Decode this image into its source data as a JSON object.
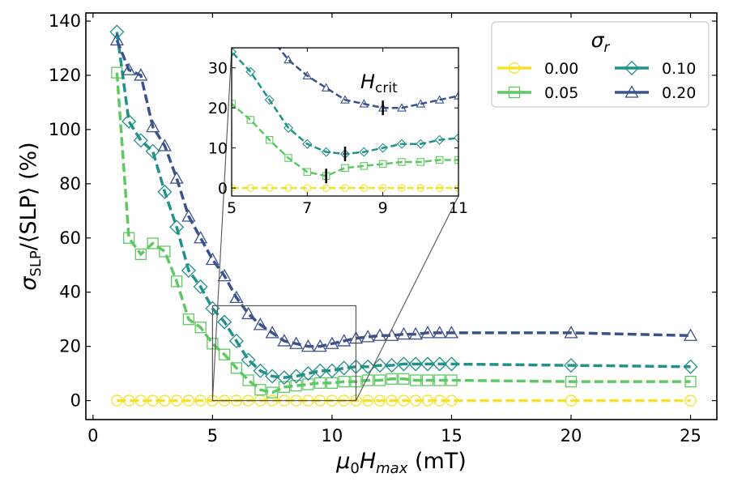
{
  "chart_data": {
    "type": "line",
    "xlabel": "μ₀H_max (mT)",
    "ylabel": "σ_SLP/⟨SLP⟩ (%)",
    "xlim": [
      -0.3,
      26.1
    ],
    "ylim": [
      -7,
      143
    ],
    "xticks": [
      0,
      5,
      10,
      15,
      20,
      25
    ],
    "yticks": [
      0,
      20,
      40,
      60,
      80,
      100,
      120,
      140
    ],
    "legend": {
      "title": "σ_r",
      "placement": "top-right"
    },
    "series": [
      {
        "name": "0.00",
        "color": "#f2e22b",
        "marker": "circle",
        "points": [
          [
            1,
            0
          ],
          [
            1.5,
            0
          ],
          [
            2,
            0
          ],
          [
            2.5,
            0
          ],
          [
            3,
            0
          ],
          [
            3.5,
            0
          ],
          [
            4,
            0
          ],
          [
            4.5,
            0
          ],
          [
            5,
            0
          ],
          [
            5.5,
            0
          ],
          [
            6,
            0
          ],
          [
            6.5,
            0
          ],
          [
            7,
            0
          ],
          [
            7.5,
            0
          ],
          [
            8,
            0
          ],
          [
            8.5,
            0
          ],
          [
            9,
            0
          ],
          [
            9.5,
            0
          ],
          [
            10,
            0
          ],
          [
            10.5,
            0
          ],
          [
            11,
            0
          ],
          [
            11.5,
            0
          ],
          [
            12,
            0
          ],
          [
            12.5,
            0
          ],
          [
            13,
            0
          ],
          [
            13.5,
            0
          ],
          [
            14,
            0
          ],
          [
            14.5,
            0
          ],
          [
            15,
            0
          ],
          [
            20,
            0
          ],
          [
            25,
            0
          ]
        ]
      },
      {
        "name": "0.05",
        "color": "#5ec962",
        "marker": "square",
        "points": [
          [
            1,
            121
          ],
          [
            1.5,
            60
          ],
          [
            2,
            54
          ],
          [
            2.5,
            58
          ],
          [
            3,
            55
          ],
          [
            3.5,
            44
          ],
          [
            4,
            30
          ],
          [
            4.5,
            27
          ],
          [
            5,
            21
          ],
          [
            5.5,
            17
          ],
          [
            6,
            12
          ],
          [
            6.5,
            7.5
          ],
          [
            7,
            4
          ],
          [
            7.5,
            3
          ],
          [
            8,
            5
          ],
          [
            8.5,
            5.5
          ],
          [
            9,
            6
          ],
          [
            9.5,
            6.5
          ],
          [
            10,
            6.5
          ],
          [
            10.5,
            7
          ],
          [
            11,
            7
          ],
          [
            11.5,
            7.5
          ],
          [
            12,
            7.5
          ],
          [
            12.5,
            8
          ],
          [
            13,
            8
          ],
          [
            13.5,
            7.5
          ],
          [
            14,
            7.5
          ],
          [
            14.5,
            7.5
          ],
          [
            15,
            7.5
          ],
          [
            20,
            7
          ],
          [
            25,
            7
          ]
        ]
      },
      {
        "name": "0.10",
        "color": "#21918c",
        "marker": "diamond",
        "points": [
          [
            1,
            136
          ],
          [
            1.5,
            103
          ],
          [
            2,
            96
          ],
          [
            2.5,
            92
          ],
          [
            3,
            77
          ],
          [
            3.5,
            64
          ],
          [
            4,
            48
          ],
          [
            4.5,
            42
          ],
          [
            5,
            34
          ],
          [
            5.5,
            29
          ],
          [
            6,
            22
          ],
          [
            6.5,
            15
          ],
          [
            7,
            11
          ],
          [
            7.5,
            9
          ],
          [
            8,
            8.5
          ],
          [
            8.5,
            9
          ],
          [
            9,
            10
          ],
          [
            9.5,
            11
          ],
          [
            10,
            11
          ],
          [
            10.5,
            12
          ],
          [
            11,
            12.5
          ],
          [
            11.5,
            12.5
          ],
          [
            12,
            13
          ],
          [
            12.5,
            13
          ],
          [
            13,
            13.5
          ],
          [
            13.5,
            13.5
          ],
          [
            14,
            13.5
          ],
          [
            14.5,
            13.5
          ],
          [
            15,
            13.5
          ],
          [
            20,
            13
          ],
          [
            25,
            12.5
          ]
        ]
      },
      {
        "name": "0.20",
        "color": "#3b528b",
        "marker": "triangle",
        "points": [
          [
            1,
            133
          ],
          [
            1.5,
            122
          ],
          [
            2,
            120
          ],
          [
            2.5,
            101
          ],
          [
            3,
            94
          ],
          [
            3.5,
            82
          ],
          [
            4,
            68
          ],
          [
            4.5,
            60
          ],
          [
            5,
            52
          ],
          [
            5.5,
            46
          ],
          [
            6,
            38
          ],
          [
            6.5,
            32
          ],
          [
            7,
            28
          ],
          [
            7.5,
            25
          ],
          [
            8,
            22
          ],
          [
            8.5,
            21
          ],
          [
            9,
            20
          ],
          [
            9.5,
            20
          ],
          [
            10,
            21
          ],
          [
            10.5,
            22
          ],
          [
            11,
            23
          ],
          [
            11.5,
            23.5
          ],
          [
            12,
            24
          ],
          [
            12.5,
            24
          ],
          [
            13,
            24.5
          ],
          [
            13.5,
            24.5
          ],
          [
            14,
            25
          ],
          [
            14.5,
            25
          ],
          [
            15,
            25
          ],
          [
            20,
            25
          ],
          [
            25,
            24
          ]
        ]
      }
    ],
    "inset": {
      "xlim": [
        5,
        11
      ],
      "ylim": [
        -2,
        35
      ],
      "xticks": [
        5,
        7,
        9,
        11
      ],
      "yticks": [
        0,
        10,
        20,
        30
      ],
      "annotation": "H_crit",
      "hcrit_marks": [
        {
          "series": "0.05",
          "x": 7.5,
          "y": 3
        },
        {
          "series": "0.10",
          "x": 8,
          "y": 8.5
        },
        {
          "series": "0.20",
          "x": 9,
          "y": 20
        }
      ]
    },
    "zoom_box": {
      "x": [
        5,
        11
      ],
      "y": [
        0,
        35
      ]
    }
  }
}
